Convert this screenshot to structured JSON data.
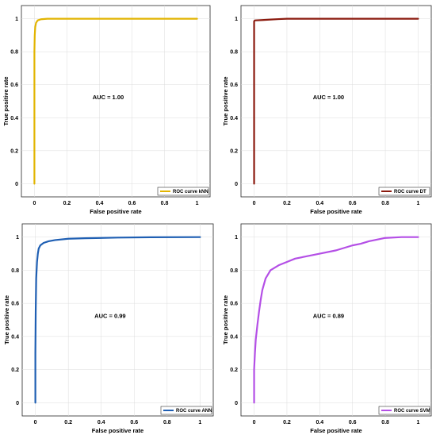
{
  "chart_data": [
    {
      "type": "line",
      "xlabel": "False positive rate",
      "ylabel": "True positive rate",
      "xlim": [
        -0.08,
        1.08
      ],
      "ylim": [
        -0.08,
        1.08
      ],
      "xticks": [
        "0",
        "0.2",
        "0.4",
        "0.6",
        "0.8",
        "1"
      ],
      "yticks": [
        "0",
        "0.2",
        "0.4",
        "0.6",
        "0.8",
        "1"
      ],
      "annotation": "AUC = 1.00",
      "legend_label": "ROC curve kNN",
      "legend_placement": "bottom-right",
      "color": "#e2b400",
      "x": [
        0,
        0,
        0.002,
        0.005,
        0.01,
        0.02,
        0.04,
        0.08,
        0.15,
        1
      ],
      "y": [
        0,
        0.8,
        0.9,
        0.95,
        0.975,
        0.99,
        0.997,
        1,
        1,
        1
      ]
    },
    {
      "type": "line",
      "xlabel": "False positive rate",
      "ylabel": "True positive rate",
      "xlim": [
        -0.08,
        1.08
      ],
      "ylim": [
        -0.08,
        1.08
      ],
      "xticks": [
        "0",
        "0.2",
        "0.4",
        "0.6",
        "0.8",
        "1"
      ],
      "yticks": [
        "0",
        "0.2",
        "0.4",
        "0.6",
        "0.8",
        "1"
      ],
      "annotation": "AUC = 1.00",
      "legend_label": "ROC curve DT",
      "legend_placement": "bottom-right",
      "color": "#8b1a0e",
      "x": [
        0,
        0,
        0.005,
        0.05,
        0.1,
        0.15,
        0.2,
        1
      ],
      "y": [
        0,
        0.985,
        0.99,
        0.992,
        0.995,
        0.998,
        1,
        1
      ]
    },
    {
      "type": "line",
      "xlabel": "False positive rate",
      "ylabel": "True positive rate",
      "xlim": [
        -0.08,
        1.08
      ],
      "ylim": [
        -0.08,
        1.08
      ],
      "xticks": [
        "0",
        "0.2",
        "0.4",
        "0.6",
        "0.8",
        "1"
      ],
      "yticks": [
        "0",
        "0.2",
        "0.4",
        "0.6",
        "0.8",
        "1"
      ],
      "annotation": "AUC = 0.99",
      "legend_label": "ROC curve ANN",
      "legend_placement": "bottom-right",
      "color": "#1f5fb3",
      "x": [
        0,
        0,
        0.002,
        0.005,
        0.01,
        0.015,
        0.02,
        0.03,
        0.05,
        0.08,
        0.12,
        0.2,
        0.3,
        0.5,
        0.7,
        1
      ],
      "y": [
        0,
        0.3,
        0.55,
        0.75,
        0.85,
        0.9,
        0.93,
        0.95,
        0.965,
        0.975,
        0.982,
        0.99,
        0.993,
        0.997,
        0.999,
        1
      ]
    },
    {
      "type": "line",
      "xlabel": "False positive rate",
      "ylabel": "True positive rate",
      "xlim": [
        -0.08,
        1.08
      ],
      "ylim": [
        -0.08,
        1.08
      ],
      "xticks": [
        "0",
        "0.2",
        "0.4",
        "0.6",
        "0.8",
        "1"
      ],
      "yticks": [
        "0",
        "0.2",
        "0.4",
        "0.6",
        "0.8",
        "1"
      ],
      "annotation": "AUC = 0.89",
      "legend_label": "ROC curve SVM",
      "legend_placement": "bottom-right",
      "color": "#b44fe6",
      "x": [
        0,
        0,
        0.005,
        0.01,
        0.02,
        0.03,
        0.04,
        0.05,
        0.07,
        0.1,
        0.15,
        0.2,
        0.25,
        0.3,
        0.4,
        0.5,
        0.6,
        0.65,
        0.7,
        0.75,
        0.8,
        0.9,
        1
      ],
      "y": [
        0,
        0.2,
        0.3,
        0.38,
        0.47,
        0.55,
        0.62,
        0.68,
        0.75,
        0.8,
        0.83,
        0.85,
        0.87,
        0.88,
        0.9,
        0.92,
        0.95,
        0.96,
        0.975,
        0.985,
        0.995,
        1,
        1
      ]
    }
  ]
}
